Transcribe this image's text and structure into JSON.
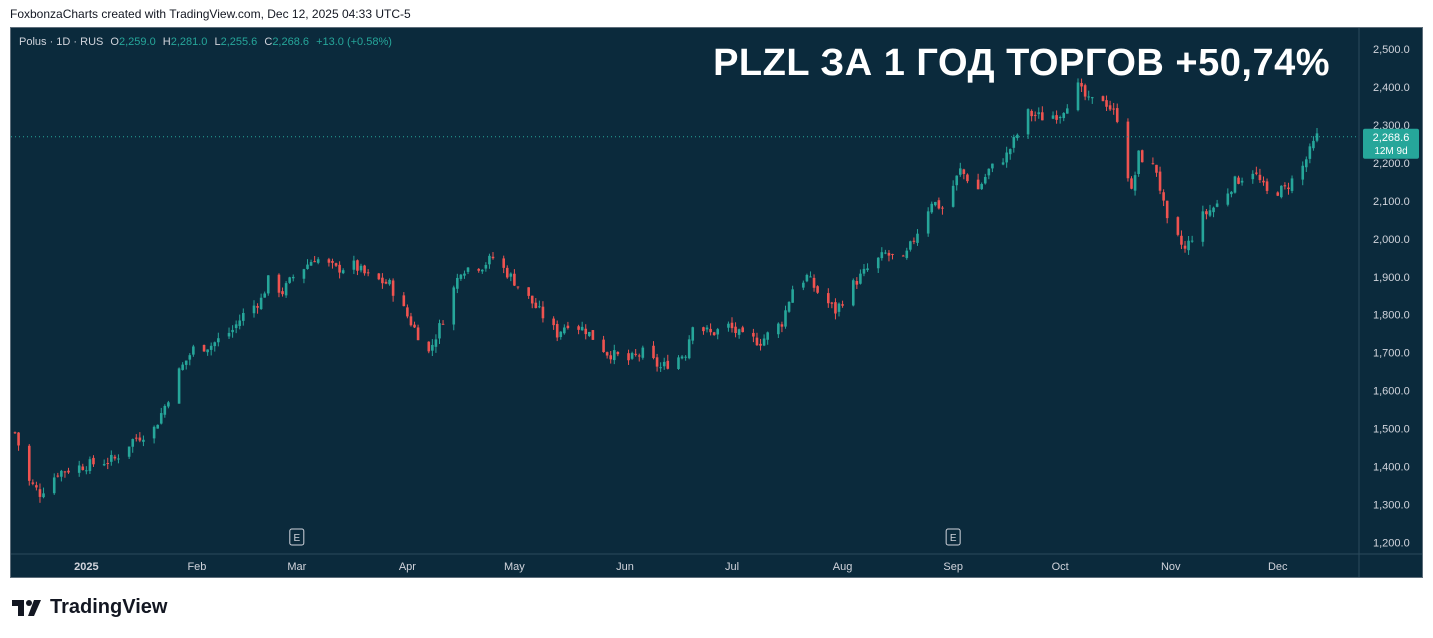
{
  "credit": "FoxbonzaCharts created with TradingView.com, Dec 12, 2025 04:33 UTC-5",
  "legend": {
    "symbol": "Polus · 1D · RUS",
    "o_label": "O",
    "o_value": "2,259.0",
    "h_label": "H",
    "h_value": "2,281.0",
    "l_label": "L",
    "l_value": "2,255.6",
    "c_label": "C",
    "c_value": "2,268.6",
    "change": "+13.0 (+0.58%)"
  },
  "headline": "PLZL ЗА 1 ГОД ТОРГОВ +50,74%",
  "price_tag": {
    "value": "2,268.6",
    "countdown": "12M 9d"
  },
  "event_marker": "E",
  "branding": "TradingView",
  "colors": {
    "background": "#0b2a3c",
    "up": "#26a69a",
    "down": "#ef5350",
    "text": "#d1d4dc"
  },
  "chart_data": {
    "type": "candlestick",
    "title": "PLZL ЗА 1 ГОД ТОРГОВ +50,74%",
    "x_tick_labels": [
      "2025",
      "Feb",
      "Mar",
      "Apr",
      "May",
      "Jun",
      "Jul",
      "Aug",
      "Sep",
      "Oct",
      "Nov",
      "Dec"
    ],
    "y_tick_labels": [
      "2,500.0",
      "2,400.0",
      "2,300.0",
      "2,200.0",
      "2,100.0",
      "2,000.0",
      "1,900.0",
      "1,800.0",
      "1,700.0",
      "1,600.0",
      "1,500.0",
      "1,400.0",
      "1,300.0",
      "1,200.0"
    ],
    "y_ticks": [
      2500,
      2400,
      2300,
      2200,
      2100,
      2000,
      1900,
      1800,
      1700,
      1600,
      1500,
      1400,
      1300,
      1200
    ],
    "ylim": [
      1170,
      2555
    ],
    "last_price": 2268.6,
    "event_markers_at": [
      "Mar",
      "Sep"
    ],
    "close_path": [
      [
        "2024-12-12",
        1490
      ],
      [
        "2024-12-16",
        1360
      ],
      [
        "2024-12-19",
        1330
      ],
      [
        "2024-12-24",
        1385
      ],
      [
        "2024-12-30",
        1400
      ],
      [
        "2025-01-09",
        1420
      ],
      [
        "2025-01-14",
        1470
      ],
      [
        "2025-01-20",
        1500
      ],
      [
        "2025-01-23",
        1560
      ],
      [
        "2025-01-27",
        1650
      ],
      [
        "2025-01-31",
        1710
      ],
      [
        "2025-02-05",
        1720
      ],
      [
        "2025-02-11",
        1760
      ],
      [
        "2025-02-14",
        1800
      ],
      [
        "2025-02-19",
        1840
      ],
      [
        "2025-02-21",
        1890
      ],
      [
        "2025-02-25",
        1860
      ],
      [
        "2025-02-28",
        1900
      ],
      [
        "2025-03-06",
        1950
      ],
      [
        "2025-03-12",
        1920
      ],
      [
        "2025-03-17",
        1930
      ],
      [
        "2025-03-21",
        1900
      ],
      [
        "2025-03-27",
        1880
      ],
      [
        "2025-04-02",
        1780
      ],
      [
        "2025-04-07",
        1700
      ],
      [
        "2025-04-11",
        1790
      ],
      [
        "2025-04-16",
        1920
      ],
      [
        "2025-04-22",
        1930
      ],
      [
        "2025-04-25",
        1950
      ],
      [
        "2025-04-30",
        1900
      ],
      [
        "2025-05-07",
        1820
      ],
      [
        "2025-05-13",
        1750
      ],
      [
        "2025-05-16",
        1780
      ],
      [
        "2025-05-21",
        1760
      ],
      [
        "2025-05-27",
        1700
      ],
      [
        "2025-06-02",
        1680
      ],
      [
        "2025-06-06",
        1700
      ],
      [
        "2025-06-11",
        1660
      ],
      [
        "2025-06-18",
        1700
      ],
      [
        "2025-06-20",
        1780
      ],
      [
        "2025-06-25",
        1750
      ],
      [
        "2025-06-30",
        1770
      ],
      [
        "2025-07-04",
        1740
      ],
      [
        "2025-07-09",
        1730
      ],
      [
        "2025-07-15",
        1780
      ],
      [
        "2025-07-18",
        1870
      ],
      [
        "2025-07-22",
        1900
      ],
      [
        "2025-07-25",
        1860
      ],
      [
        "2025-07-30",
        1810
      ],
      [
        "2025-08-04",
        1880
      ],
      [
        "2025-08-08",
        1920
      ],
      [
        "2025-08-13",
        1960
      ],
      [
        "2025-08-18",
        1940
      ],
      [
        "2025-08-21",
        2000
      ],
      [
        "2025-08-26",
        2100
      ],
      [
        "2025-08-29",
        2080
      ],
      [
        "2025-09-03",
        2180
      ],
      [
        "2025-09-08",
        2130
      ],
      [
        "2025-09-11",
        2180
      ],
      [
        "2025-09-16",
        2220
      ],
      [
        "2025-09-22",
        2330
      ],
      [
        "2025-09-26",
        2320
      ],
      [
        "2025-10-01",
        2330
      ],
      [
        "2025-10-06",
        2400
      ],
      [
        "2025-10-09",
        2360
      ],
      [
        "2025-10-13",
        2370
      ],
      [
        "2025-10-17",
        2320
      ],
      [
        "2025-10-21",
        2120
      ],
      [
        "2025-10-23",
        2220
      ],
      [
        "2025-10-28",
        2180
      ],
      [
        "2025-10-31",
        2040
      ],
      [
        "2025-11-05",
        1970
      ],
      [
        "2025-11-10",
        2060
      ],
      [
        "2025-11-14",
        2090
      ],
      [
        "2025-11-19",
        2150
      ],
      [
        "2025-11-24",
        2180
      ],
      [
        "2025-11-28",
        2120
      ],
      [
        "2025-12-03",
        2130
      ],
      [
        "2025-12-08",
        2190
      ],
      [
        "2025-12-12",
        2268.6
      ]
    ]
  }
}
